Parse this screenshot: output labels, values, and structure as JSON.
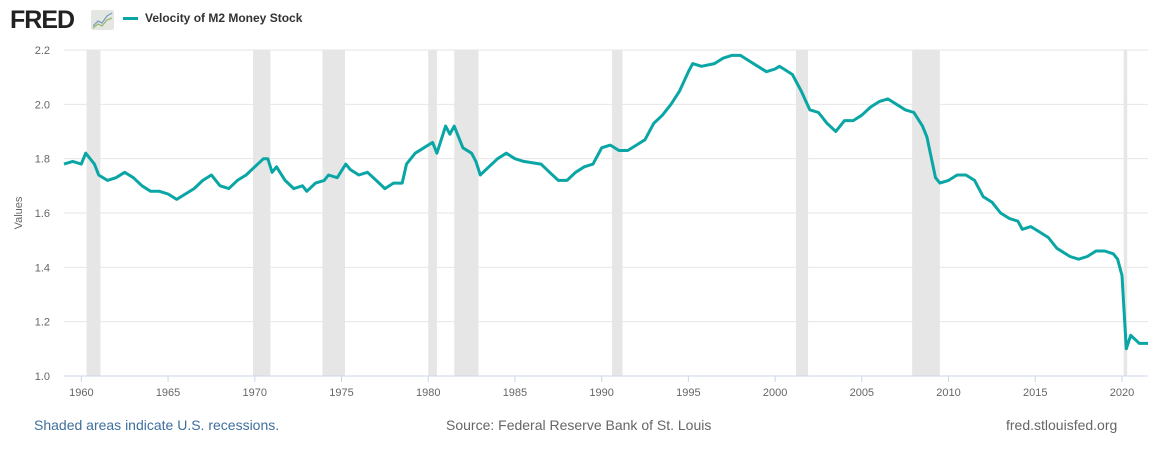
{
  "header": {
    "logo_text": "FRED",
    "logo_icon": "mini-line-chart-icon"
  },
  "footer": {
    "recession_note": "Shaded areas indicate U.S. recessions.",
    "source": "Source: Federal Reserve Bank of St. Louis",
    "site": "fred.stlouisfed.org"
  },
  "colors": {
    "series": "#0aa5a5",
    "recession": "#e6e6e6",
    "grid": "#e6e6e6",
    "axis": "#ccd6eb",
    "note": "#3e6f9e",
    "text": "#666666"
  },
  "chart_data": {
    "type": "line",
    "title": "",
    "xlabel": "",
    "ylabel": "Values",
    "xlim": [
      1959.0,
      2021.5
    ],
    "ylim": [
      1.0,
      2.2
    ],
    "yticks": [
      "1.0",
      "1.2",
      "1.4",
      "1.6",
      "1.8",
      "2.0",
      "2.2"
    ],
    "xticks": [
      "1960",
      "1965",
      "1970",
      "1975",
      "1980",
      "1985",
      "1990",
      "1995",
      "2000",
      "2005",
      "2010",
      "2015",
      "2020"
    ],
    "grid": true,
    "legend_placement": "top-left",
    "series": [
      {
        "name": "Velocity of M2 Money Stock",
        "x": [
          1959,
          1959.5,
          1960,
          1960.25,
          1960.75,
          1961,
          1961.5,
          1962,
          1962.5,
          1963,
          1963.5,
          1964,
          1964.5,
          1965,
          1965.5,
          1966,
          1966.5,
          1967,
          1967.5,
          1968,
          1968.5,
          1969,
          1969.5,
          1970,
          1970.5,
          1970.75,
          1971,
          1971.25,
          1971.75,
          1972.25,
          1972.75,
          1973,
          1973.5,
          1974,
          1974.25,
          1974.75,
          1975.25,
          1975.5,
          1976,
          1976.5,
          1977,
          1977.5,
          1978,
          1978.5,
          1978.75,
          1979.25,
          1979.75,
          1980.25,
          1980.5,
          1981,
          1981.25,
          1981.5,
          1982,
          1982.5,
          1982.75,
          1983,
          1983.5,
          1984,
          1984.5,
          1985,
          1985.5,
          1986.5,
          1987,
          1987.5,
          1988,
          1988.5,
          1989,
          1989.5,
          1990,
          1990.5,
          1991,
          1991.5,
          1992,
          1992.5,
          1993,
          1993.5,
          1994,
          1994.5,
          1995,
          1995.25,
          1995.75,
          1996.5,
          1997,
          1997.5,
          1998,
          1998.5,
          1999,
          1999.5,
          2000,
          2000.25,
          2000.5,
          2001,
          2001.5,
          2002,
          2002.5,
          2003,
          2003.5,
          2004,
          2004.5,
          2005,
          2005.5,
          2006,
          2006.5,
          2007,
          2007.5,
          2008,
          2008.5,
          2008.75,
          2009.25,
          2009.5,
          2010,
          2010.5,
          2011,
          2011.5,
          2012,
          2012.5,
          2013,
          2013.5,
          2014,
          2014.25,
          2014.75,
          2015.25,
          2015.75,
          2016.25,
          2017,
          2017.5,
          2018,
          2018.5,
          2019,
          2019.5,
          2019.75,
          2020,
          2020.25,
          2020.5,
          2021,
          2021.5
        ],
        "values": [
          1.78,
          1.79,
          1.78,
          1.82,
          1.78,
          1.74,
          1.72,
          1.73,
          1.75,
          1.73,
          1.7,
          1.68,
          1.68,
          1.67,
          1.65,
          1.67,
          1.69,
          1.72,
          1.74,
          1.7,
          1.69,
          1.72,
          1.74,
          1.77,
          1.8,
          1.8,
          1.75,
          1.77,
          1.72,
          1.69,
          1.7,
          1.68,
          1.71,
          1.72,
          1.74,
          1.73,
          1.78,
          1.76,
          1.74,
          1.75,
          1.72,
          1.69,
          1.71,
          1.71,
          1.78,
          1.82,
          1.84,
          1.86,
          1.82,
          1.92,
          1.89,
          1.92,
          1.84,
          1.82,
          1.79,
          1.74,
          1.77,
          1.8,
          1.82,
          1.8,
          1.79,
          1.78,
          1.75,
          1.72,
          1.72,
          1.75,
          1.77,
          1.78,
          1.84,
          1.85,
          1.83,
          1.83,
          1.85,
          1.87,
          1.93,
          1.96,
          2.0,
          2.05,
          2.12,
          2.15,
          2.14,
          2.15,
          2.17,
          2.18,
          2.18,
          2.16,
          2.14,
          2.12,
          2.13,
          2.14,
          2.13,
          2.11,
          2.05,
          1.98,
          1.97,
          1.93,
          1.9,
          1.94,
          1.94,
          1.96,
          1.99,
          2.01,
          2.02,
          2.0,
          1.98,
          1.97,
          1.92,
          1.88,
          1.73,
          1.71,
          1.72,
          1.74,
          1.74,
          1.72,
          1.66,
          1.64,
          1.6,
          1.58,
          1.57,
          1.54,
          1.55,
          1.53,
          1.51,
          1.47,
          1.44,
          1.43,
          1.44,
          1.46,
          1.46,
          1.45,
          1.43,
          1.37,
          1.1,
          1.15,
          1.12,
          1.12
        ]
      }
    ],
    "recessions": [
      [
        1960.3,
        1961.1
      ],
      [
        1969.9,
        1970.9
      ],
      [
        1973.9,
        1975.2
      ],
      [
        1980.0,
        1980.5
      ],
      [
        1981.5,
        1982.9
      ],
      [
        1990.6,
        1991.2
      ],
      [
        2001.2,
        2001.9
      ],
      [
        2007.9,
        2009.5
      ],
      [
        2020.1,
        2020.3
      ]
    ]
  }
}
